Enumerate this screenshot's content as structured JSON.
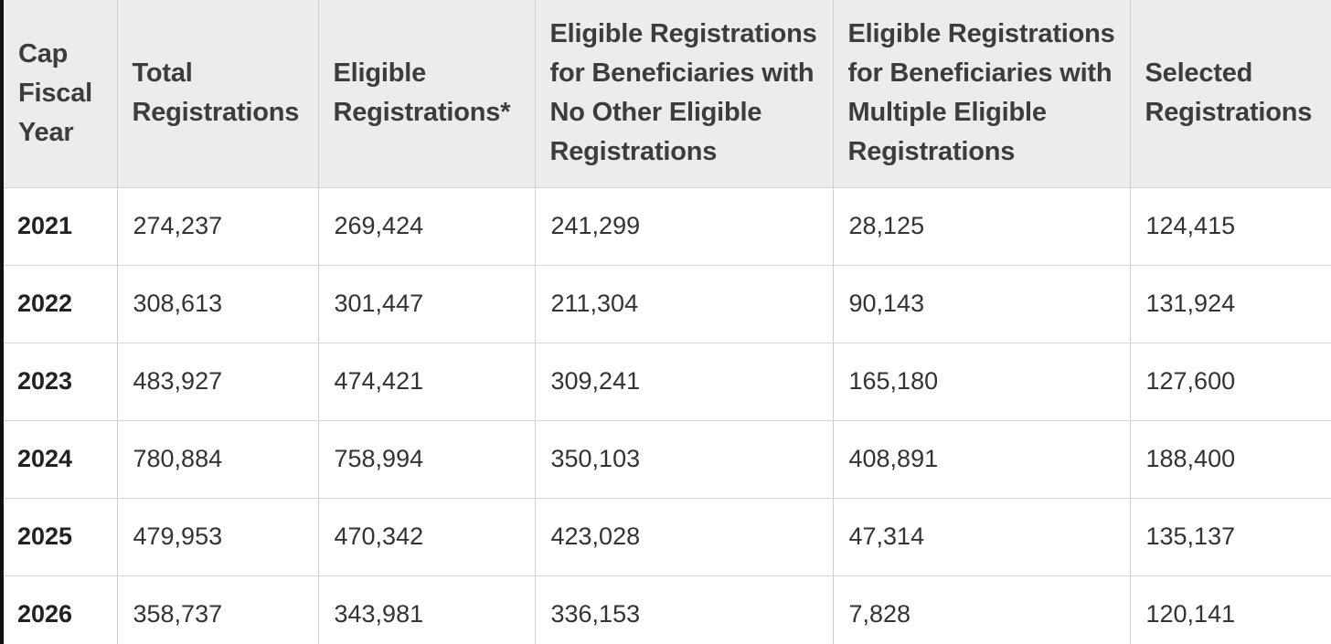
{
  "table": {
    "headers": [
      "Cap Fiscal Year",
      "Total Registrations",
      "Eligible Registrations*",
      "Eligible Registrations for Beneficiaries with No Other Eligible Registrations",
      "Eligible Registrations for Beneficiaries with Multiple Eligible Registrations",
      "Selected Registrations"
    ],
    "rows": [
      [
        "2021",
        "274,237",
        "269,424",
        "241,299",
        "28,125",
        "124,415"
      ],
      [
        "2022",
        "308,613",
        "301,447",
        "211,304",
        "90,143",
        "131,924"
      ],
      [
        "2023",
        "483,927",
        "474,421",
        "309,241",
        "165,180",
        "127,600"
      ],
      [
        "2024",
        "780,884",
        "758,994",
        "350,103",
        "408,891",
        "188,400"
      ],
      [
        "2025",
        "479,953",
        "470,342",
        "423,028",
        "47,314",
        "135,137"
      ],
      [
        "2026",
        "358,737",
        "343,981",
        "336,153",
        "7,828",
        "120,141"
      ]
    ]
  },
  "colors": {
    "header_background": "#ececec",
    "row_background": "#ffffff",
    "border": "#cfcfcf",
    "text": "#333333",
    "left_edge": "#111111"
  }
}
